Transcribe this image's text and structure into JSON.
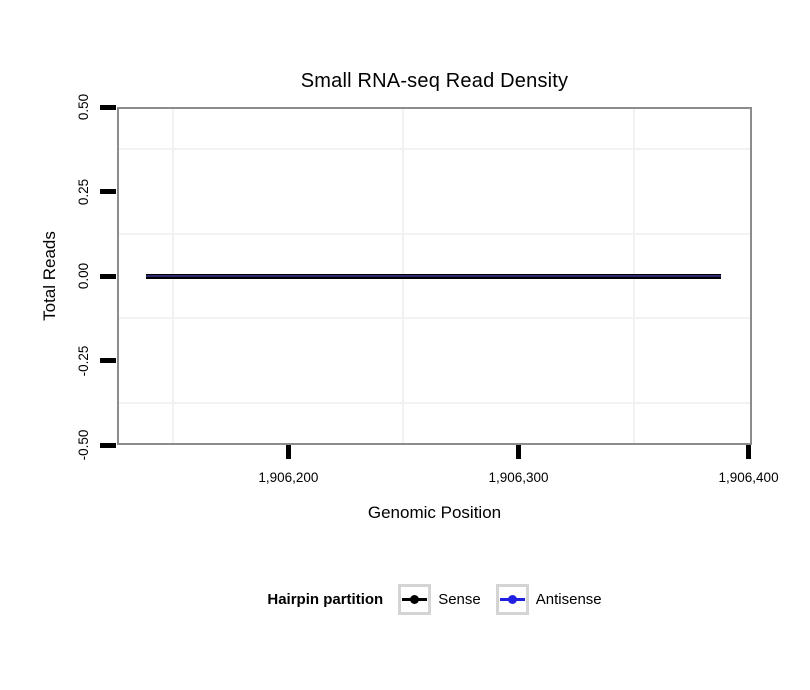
{
  "figure": {
    "title": "Small RNA-seq Read Density",
    "x_axis": {
      "label": "Genomic Position",
      "tick_labels": [
        "1,906,200",
        "1,906,300",
        "1,906,400"
      ]
    },
    "y_axis": {
      "label": "Total Reads",
      "tick_labels": [
        "0.50",
        "0.25",
        "0.00",
        "-0.25",
        "-0.50"
      ]
    },
    "legend": {
      "title": "Hairpin partition",
      "items": [
        {
          "label": "Sense",
          "color": "#000000"
        },
        {
          "label": "Antisense",
          "color": "#2020E0"
        }
      ]
    },
    "colors": {
      "panel_border": "#8c8c8c",
      "minor_grid": "#f2f2f2",
      "tick": "#000000",
      "overplot_core": "#2b2b75"
    }
  },
  "chart_data": {
    "type": "line",
    "title": "Small RNA-seq Read Density",
    "xlabel": "Genomic Position",
    "ylabel": "Total Reads",
    "xlim": [
      1906125.5,
      1906401.5
    ],
    "ylim": [
      -0.5,
      0.5
    ],
    "x_ticks": [
      1906200,
      1906300,
      1906400
    ],
    "x_tick_labels": [
      "1,906,200",
      "1,906,300",
      "1,906,400"
    ],
    "x_minor_gridlines": [
      1906150,
      1906250,
      1906350
    ],
    "y_ticks": [
      0.5,
      0.25,
      0,
      -0.25,
      -0.5
    ],
    "y_tick_labels": [
      "0.50",
      "0.25",
      "0.00",
      "-0.25",
      "-0.50"
    ],
    "y_minor_gridlines": [
      0.375,
      0.125,
      -0.125,
      -0.375
    ],
    "grid": "minor-only",
    "legend_position": "bottom",
    "legend_title": "Hairpin partition",
    "series": [
      {
        "name": "Sense",
        "color": "#000000",
        "x": [
          1906138,
          1906388
        ],
        "y": [
          0,
          0
        ]
      },
      {
        "name": "Antisense",
        "color": "#2b2b75",
        "x": [
          1906138,
          1906388
        ],
        "y": [
          0,
          0
        ]
      }
    ]
  }
}
